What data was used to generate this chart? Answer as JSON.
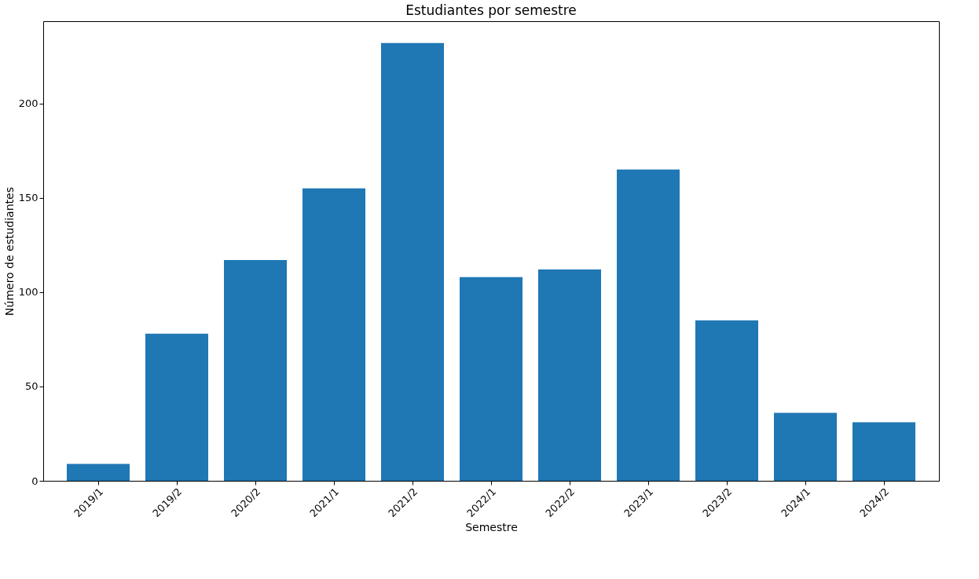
{
  "chart_data": {
    "type": "bar",
    "title": "Estudiantes por semestre",
    "xlabel": "Semestre",
    "ylabel": "Número de estudiantes",
    "categories": [
      "2019/1",
      "2019/2",
      "2020/2",
      "2021/1",
      "2021/2",
      "2022/1",
      "2022/2",
      "2023/1",
      "2023/2",
      "2024/1",
      "2024/2"
    ],
    "values": [
      9,
      78,
      117,
      155,
      232,
      108,
      112,
      165,
      85,
      36,
      31
    ],
    "color": "#1f77b4",
    "ylim": [
      0,
      243.6
    ],
    "yticks": [
      0,
      50,
      100,
      150,
      200
    ],
    "grid": false
  }
}
